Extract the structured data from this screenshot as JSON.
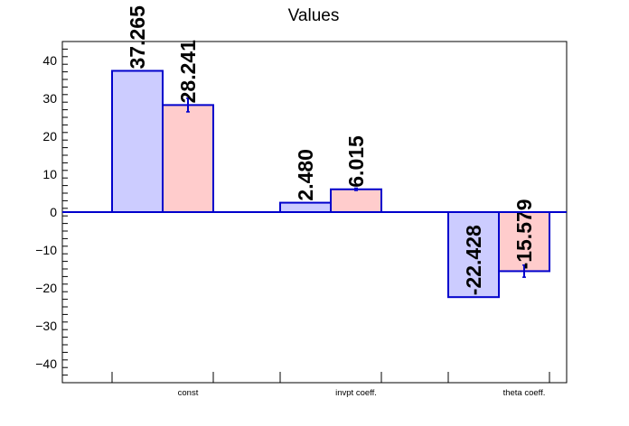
{
  "chart_data": {
    "type": "bar",
    "title": "Values",
    "xlabel": "",
    "ylabel": "",
    "categories": [
      "const",
      "invpt coeff.",
      "theta coeff."
    ],
    "ylim": [
      -45,
      45
    ],
    "yticks": [
      -40,
      -30,
      -20,
      -10,
      0,
      10,
      20,
      30,
      40
    ],
    "grid": false,
    "series": [
      {
        "values": [
          37.265,
          2.48,
          -22.428
        ],
        "labels": [
          "37.265",
          "2.480",
          "-22.428"
        ],
        "errors": [
          0,
          0,
          0
        ],
        "fill": "#ccccff",
        "stroke": "#0000cc"
      },
      {
        "values": [
          28.241,
          6.015,
          -15.579
        ],
        "labels": [
          "28.241",
          "6.015",
          "-15.579"
        ],
        "errors": [
          1.8,
          0.3,
          1.6
        ],
        "fill": "#ffcccc",
        "stroke": "#0000cc"
      }
    ]
  }
}
